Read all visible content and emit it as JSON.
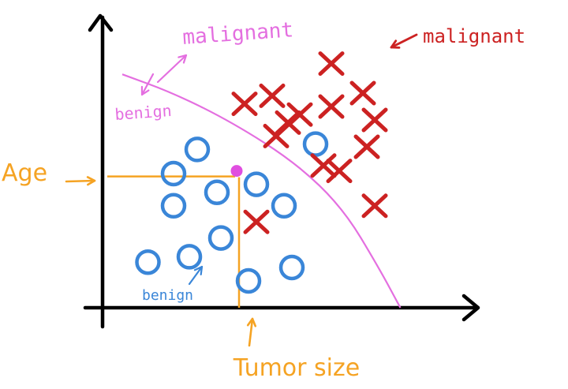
{
  "chart_data": {
    "type": "scatter",
    "xlabel": "Tumor size",
    "ylabel": "Age",
    "annotations": {
      "malignant_pink": "malignant",
      "benign_pink": "benign",
      "malignant_red": "malignant",
      "benign_blue": "benign"
    },
    "grid": false,
    "legend": "none",
    "colors": {
      "axes": "#000000",
      "benign": "#3a86d8",
      "malignant": "#cc2222",
      "boundary": "#e46fe0",
      "highlight": "#f5a323",
      "query_point": "#e04ee0"
    },
    "xlim": [
      0,
      10
    ],
    "ylim": [
      0,
      10
    ],
    "boundary": {
      "shape": "curve",
      "points": [
        [
          0.5,
          8.7
        ],
        [
          1.8,
          8.0
        ],
        [
          3.3,
          6.9
        ],
        [
          4.9,
          5.4
        ],
        [
          6.1,
          3.7
        ],
        [
          7.0,
          1.5
        ],
        [
          7.55,
          0.0
        ]
      ]
    },
    "series": [
      {
        "marker": "o",
        "points": [
          [
            1.15,
            1.7
          ],
          [
            1.8,
            5.0
          ],
          [
            2.4,
            5.9
          ],
          [
            1.8,
            3.8
          ],
          [
            2.9,
            4.3
          ],
          [
            2.2,
            1.9
          ],
          [
            3.0,
            2.6
          ],
          [
            3.9,
            4.6
          ],
          [
            4.6,
            3.8
          ],
          [
            3.7,
            1.0
          ],
          [
            4.8,
            1.5
          ],
          [
            5.4,
            6.1
          ]
        ]
      },
      {
        "marker": "x",
        "points": [
          [
            3.6,
            7.6
          ],
          [
            4.3,
            7.9
          ],
          [
            4.4,
            6.4
          ],
          [
            5.0,
            7.2
          ],
          [
            4.7,
            6.9
          ],
          [
            5.8,
            9.1
          ],
          [
            5.8,
            7.5
          ],
          [
            6.6,
            8.0
          ],
          [
            6.9,
            7.0
          ],
          [
            6.7,
            6.0
          ],
          [
            5.6,
            5.3
          ],
          [
            6.0,
            5.1
          ],
          [
            6.9,
            3.8
          ],
          [
            3.9,
            3.2
          ]
        ]
      }
    ],
    "query_point": {
      "x": 3.4,
      "y": 5.1
    }
  }
}
